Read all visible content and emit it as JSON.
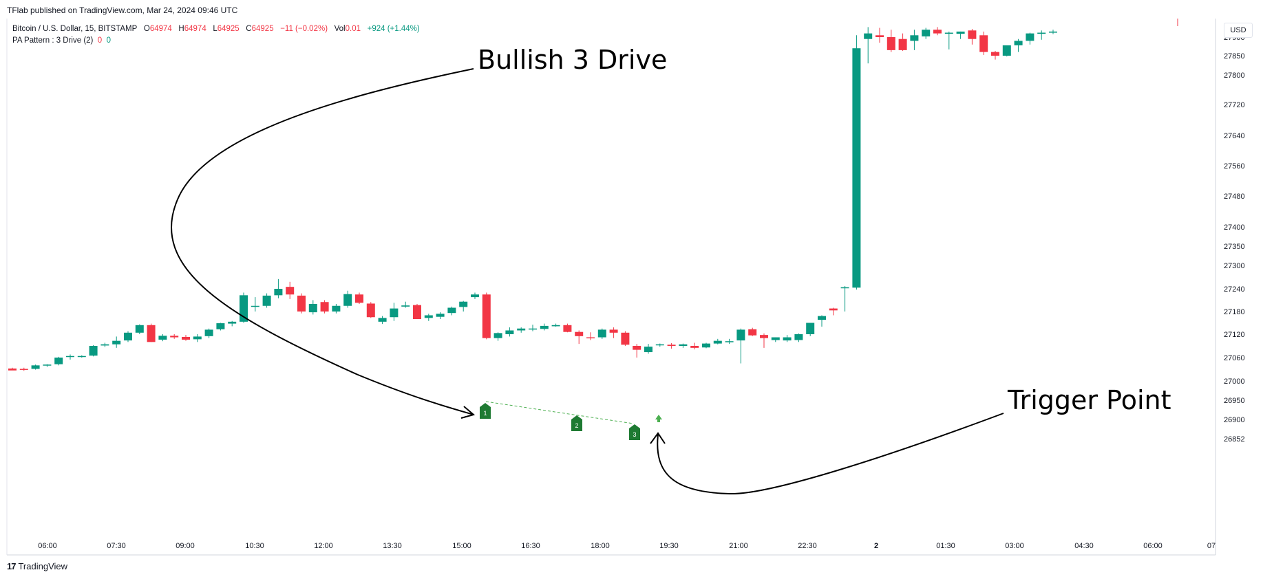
{
  "header": {
    "published": "TFlab published on TradingView.com, Mar 24, 2024 09:46 UTC",
    "symbol": "Bitcoin / U.S. Dollar, 15, BITSTAMP",
    "o_label": "O",
    "o_value": "64974",
    "h_label": "H",
    "h_value": "64974",
    "l_label": "L",
    "l_value": "64925",
    "c_label": "C",
    "c_value": "64925",
    "change": "−11 (−0.02%)",
    "vol_label": "Vol",
    "vol_value": "0.01",
    "extra_change": "+924 (+1.44%)",
    "indicator": "PA Pattern : 3 Drive (2)",
    "indicator_v1": "0",
    "indicator_v2": "0"
  },
  "currency_button": "USD",
  "brand": {
    "logo": "17",
    "name": "TradingView"
  },
  "colors": {
    "up": "#089981",
    "down": "#f23645",
    "marker": "#1e7a32",
    "dashed": "#4caf50"
  },
  "chart_data": {
    "type": "candlestick",
    "y_ticks": [
      "27900",
      "27850",
      "27800",
      "27720",
      "27640",
      "27560",
      "27480",
      "27400",
      "27350",
      "27300",
      "27240",
      "27180",
      "27120",
      "27060",
      "27000",
      "26950",
      "26900",
      "26852"
    ],
    "x_ticks": [
      "06:00",
      "07:30",
      "09:00",
      "10:30",
      "12:00",
      "13:30",
      "15:00",
      "16:30",
      "18:00",
      "19:30",
      "21:00",
      "22:30",
      "2",
      "01:30",
      "03:00",
      "04:30",
      "06:00",
      "07"
    ],
    "candles": [
      [
        27032,
        27034,
        27028,
        27027
      ],
      [
        27031,
        27034,
        27026,
        27030
      ],
      [
        27031,
        27042,
        27029,
        27040
      ],
      [
        27040,
        27043,
        27036,
        27042
      ],
      [
        27043,
        27062,
        27040,
        27060
      ],
      [
        27062,
        27068,
        27055,
        27064
      ],
      [
        27063,
        27066,
        27060,
        27064
      ],
      [
        27065,
        27092,
        27063,
        27090
      ],
      [
        27091,
        27098,
        27087,
        27094
      ],
      [
        27094,
        27114,
        27085,
        27103
      ],
      [
        27104,
        27128,
        27100,
        27124
      ],
      [
        27124,
        27146,
        27120,
        27144
      ],
      [
        27144,
        27148,
        27100,
        27100
      ],
      [
        27106,
        27120,
        27102,
        27116
      ],
      [
        27116,
        27120,
        27108,
        27112
      ],
      [
        27113,
        27118,
        27103,
        27106
      ],
      [
        27107,
        27120,
        27100,
        27114
      ],
      [
        27115,
        27135,
        27110,
        27132
      ],
      [
        27133,
        27150,
        27130,
        27149
      ],
      [
        27148,
        27155,
        27141,
        27153
      ],
      [
        27153,
        27230,
        27150,
        27223
      ],
      [
        27195,
        27218,
        27180,
        27195
      ],
      [
        27195,
        27228,
        27190,
        27222
      ],
      [
        27223,
        27265,
        27215,
        27240
      ],
      [
        27245,
        27258,
        27213,
        27225
      ],
      [
        27222,
        27228,
        27175,
        27180
      ],
      [
        27178,
        27210,
        27172,
        27200
      ],
      [
        27205,
        27210,
        27175,
        27180
      ],
      [
        27180,
        27200,
        27175,
        27195
      ],
      [
        27195,
        27235,
        27190,
        27226
      ],
      [
        27225,
        27230,
        27200,
        27203
      ],
      [
        27201,
        27205,
        27163,
        27165
      ],
      [
        27153,
        27168,
        27147,
        27163
      ],
      [
        27165,
        27203,
        27155,
        27188
      ],
      [
        27193,
        27206,
        27190,
        27196
      ],
      [
        27197,
        27200,
        27160,
        27160
      ],
      [
        27163,
        27174,
        27155,
        27170
      ],
      [
        27166,
        27178,
        27160,
        27174
      ],
      [
        27176,
        27193,
        27170,
        27190
      ],
      [
        27192,
        27208,
        27180,
        27206
      ],
      [
        27218,
        27230,
        27213,
        27225
      ],
      [
        27225,
        27230,
        27107,
        27110
      ],
      [
        27110,
        27125,
        27103,
        27123
      ],
      [
        27120,
        27138,
        27114,
        27130
      ],
      [
        27130,
        27138,
        27124,
        27135
      ],
      [
        27135,
        27145,
        27128,
        27135
      ],
      [
        27134,
        27148,
        27130,
        27142
      ],
      [
        27141,
        27148,
        27140,
        27144
      ],
      [
        27144,
        27148,
        27125,
        27126
      ],
      [
        27126,
        27130,
        27095,
        27115
      ],
      [
        27112,
        27125,
        27105,
        27110
      ],
      [
        27112,
        27135,
        27108,
        27132
      ],
      [
        27132,
        27138,
        27110,
        27124
      ],
      [
        27124,
        27128,
        27090,
        27093
      ],
      [
        27090,
        27095,
        27060,
        27080
      ],
      [
        27074,
        27095,
        27070,
        27088
      ],
      [
        27092,
        27096,
        27088,
        27094
      ],
      [
        27093,
        27097,
        27083,
        27090
      ],
      [
        27090,
        27096,
        27085,
        27094
      ],
      [
        27090,
        27098,
        27081,
        27085
      ],
      [
        27086,
        27098,
        27084,
        27096
      ],
      [
        27096,
        27108,
        27094,
        27103
      ],
      [
        27102,
        27108,
        27095,
        27102
      ],
      [
        27104,
        27135,
        27045,
        27132
      ],
      [
        27133,
        27137,
        27115,
        27117
      ],
      [
        27118,
        27122,
        27085,
        27110
      ],
      [
        27105,
        27112,
        27100,
        27112
      ],
      [
        27104,
        27118,
        27100,
        27112
      ],
      [
        27105,
        27122,
        27100,
        27120
      ],
      [
        27120,
        27150,
        27115,
        27150
      ],
      [
        27158,
        27170,
        27140,
        27168
      ],
      [
        27188,
        27190,
        27170,
        27183
      ],
      [
        27243,
        27247,
        27180,
        27244
      ],
      [
        27243,
        27905,
        27238,
        27870
      ],
      [
        27895,
        27927,
        27830,
        27910
      ],
      [
        27905,
        27925,
        27885,
        27900
      ],
      [
        27900,
        27920,
        27860,
        27865
      ],
      [
        27895,
        27910,
        27863,
        27865
      ],
      [
        27890,
        27920,
        27865,
        27905
      ],
      [
        27902,
        27925,
        27895,
        27920
      ],
      [
        27920,
        27927,
        27905,
        27910
      ],
      [
        27912,
        27915,
        27867,
        27912
      ],
      [
        27909,
        27915,
        27895,
        27915
      ],
      [
        27918,
        27922,
        27880,
        27895
      ],
      [
        27905,
        27915,
        27852,
        27860
      ],
      [
        27860,
        27863,
        27840,
        27850
      ],
      [
        27850,
        27875,
        27848,
        27878
      ],
      [
        27878,
        27895,
        27860,
        27890
      ],
      [
        27890,
        27912,
        27880,
        27910
      ],
      [
        27909,
        27918,
        27893,
        27912
      ],
      [
        27912,
        27920,
        27908,
        27915
      ]
    ],
    "drive_points": [
      "1",
      "2",
      "3"
    ],
    "annotations": {
      "pattern_label": "Bullish 3 Drive",
      "trigger_label": "Trigger Point"
    }
  }
}
